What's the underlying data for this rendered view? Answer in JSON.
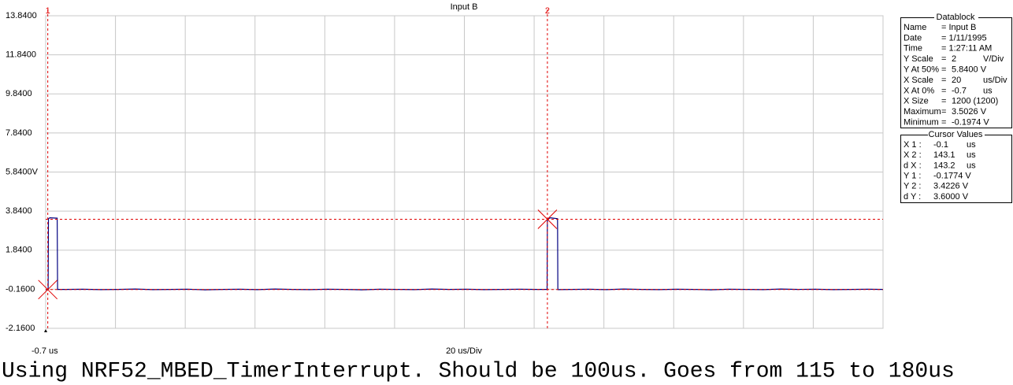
{
  "chart_data": {
    "type": "line",
    "title": "Input B",
    "x": [
      -0.7,
      0,
      0.1,
      0.5,
      2.6,
      2.7,
      5,
      10,
      15,
      20,
      25,
      30,
      35,
      40,
      45,
      50,
      55,
      60,
      65,
      70,
      75,
      80,
      85,
      90,
      95,
      100,
      105,
      110,
      115,
      120,
      125,
      130,
      135,
      140,
      143.0,
      143.1,
      144,
      146.0,
      146.1,
      150,
      155,
      160,
      165,
      170,
      175,
      180,
      185,
      190,
      195,
      200,
      205,
      210,
      215,
      220,
      225,
      230,
      235,
      239.3
    ],
    "values": [
      -0.18,
      -0.18,
      3.45,
      3.5,
      3.48,
      -0.17,
      -0.17,
      -0.16,
      -0.18,
      -0.17,
      -0.15,
      -0.18,
      -0.17,
      -0.16,
      -0.19,
      -0.17,
      -0.16,
      -0.18,
      -0.15,
      -0.17,
      -0.18,
      -0.16,
      -0.17,
      -0.19,
      -0.16,
      -0.17,
      -0.18,
      -0.15,
      -0.17,
      -0.16,
      -0.18,
      -0.17,
      -0.16,
      -0.17,
      -0.17,
      3.42,
      3.5,
      3.45,
      -0.18,
      -0.17,
      -0.16,
      -0.18,
      -0.15,
      -0.17,
      -0.18,
      -0.16,
      -0.17,
      -0.19,
      -0.16,
      -0.17,
      -0.18,
      -0.15,
      -0.17,
      -0.16,
      -0.18,
      -0.17,
      -0.16,
      -0.17
    ],
    "color": "#000080",
    "xlim": [
      -0.7,
      239.3
    ],
    "x_divisions": 12,
    "xticks": [
      {
        "value": -0.7,
        "label": "-0.7 us"
      }
    ],
    "x_label": "20 us/Div",
    "ylim": [
      -2.16,
      13.84
    ],
    "yticks": [
      {
        "value": 13.84,
        "label": "13.8400"
      },
      {
        "value": 11.84,
        "label": "11.8400"
      },
      {
        "value": 9.84,
        "label": "9.8400"
      },
      {
        "value": 7.84,
        "label": "7.8400"
      },
      {
        "value": 5.84,
        "label": "5.8400V"
      },
      {
        "value": 3.84,
        "label": "3.8400"
      },
      {
        "value": 1.84,
        "label": "1.8400"
      },
      {
        "value": -0.16,
        "label": "-0.1600"
      },
      {
        "value": -2.16,
        "label": "-2.1600"
      }
    ],
    "grid": true,
    "cursor_color": "#e00000",
    "cursors": [
      {
        "label": "1",
        "x": -0.1,
        "y": -0.1774
      },
      {
        "label": "2",
        "x": 143.1,
        "y": 3.4226
      }
    ]
  },
  "datablock": {
    "title": "Datablock",
    "rows": [
      [
        "Name",
        "= Input B",
        ""
      ],
      [
        "Date",
        "= 1/11/1995",
        ""
      ],
      [
        "Time",
        "= 1:27:11 AM",
        ""
      ],
      [
        "Y Scale",
        "=",
        "2",
        "V/Div"
      ],
      [
        "Y At 50%",
        "=",
        "5.8400 V"
      ],
      [
        "X Scale",
        "=",
        "20",
        "us/Div"
      ],
      [
        "X At 0%",
        "=",
        "-0.7",
        "us"
      ],
      [
        "X Size",
        "=",
        "1200 (1200)"
      ],
      [
        "Maximum",
        "=",
        "3.5026 V"
      ],
      [
        "Minimum",
        "=",
        "-0.1974 V"
      ]
    ]
  },
  "cursor_values": {
    "title": "Cursor Values",
    "rows": [
      [
        "X 1 :",
        "-0.1",
        "us"
      ],
      [
        "X 2 :",
        "143.1",
        "us"
      ],
      [
        "d X :",
        "143.2",
        "us"
      ],
      [
        "Y 1 :",
        "-0.1774 V"
      ],
      [
        "Y 2 :",
        "3.4226 V"
      ],
      [
        "d Y :",
        "3.6000 V"
      ]
    ]
  },
  "caption": "Using NRF52_MBED_TimerInterrupt. Should be 100us. Goes from 115 to 180us"
}
